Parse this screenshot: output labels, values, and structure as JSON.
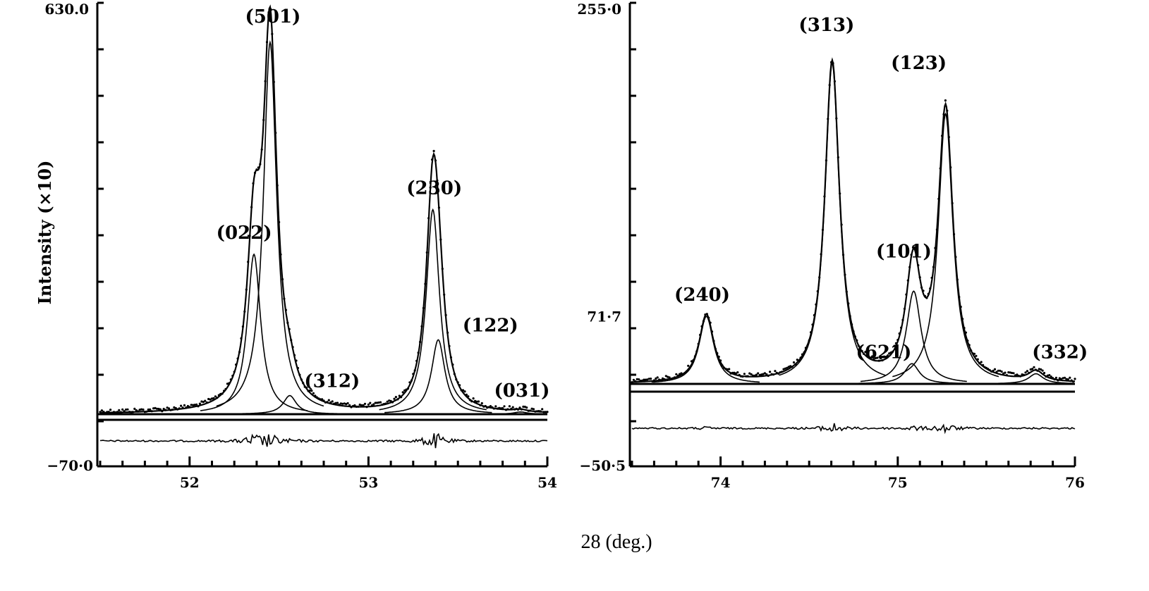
{
  "xlabel": "28 (deg.)",
  "chart_data": [
    {
      "type": "line",
      "ylabel": "Intensity (×10)",
      "ylim": [
        -70.0,
        630.0
      ],
      "ymax_label": "630.0",
      "ymin_label": "−70·0",
      "xlim": [
        51.5,
        54.0
      ],
      "xticks": [
        "52",
        "53",
        "54"
      ],
      "xtick_values": [
        52,
        53,
        54
      ],
      "peaks": [
        {
          "label": "(022)",
          "x": 52.36,
          "y": 215
        },
        {
          "label": "(501)",
          "x": 52.45,
          "y": 500
        },
        {
          "label": "(312)",
          "x": 52.56,
          "y": 25
        },
        {
          "label": "(230)",
          "x": 53.36,
          "y": 275
        },
        {
          "label": "(122)",
          "x": 53.39,
          "y": 100
        },
        {
          "label": "(031)",
          "x": 53.85,
          "y": 3
        }
      ]
    },
    {
      "type": "line",
      "ylim": [
        -50.5,
        255.0
      ],
      "ymax_label": "255·0",
      "ymid_label": "71·7",
      "ymid_value": 71.7,
      "ymin_label": "−50·5",
      "xlim": [
        73.5,
        76.0
      ],
      "xticks": [
        "74",
        "75",
        "76"
      ],
      "xtick_values": [
        74,
        75,
        76
      ],
      "peaks": [
        {
          "label": "(240)",
          "x": 73.92,
          "y": 40
        },
        {
          "label": "(313)",
          "x": 74.63,
          "y": 190
        },
        {
          "label": "(621)",
          "x": 75.08,
          "y": 12
        },
        {
          "label": "(101)",
          "x": 75.09,
          "y": 55
        },
        {
          "label": "(123)",
          "x": 75.27,
          "y": 160
        },
        {
          "label": "(332)",
          "x": 75.78,
          "y": 6
        }
      ]
    }
  ]
}
